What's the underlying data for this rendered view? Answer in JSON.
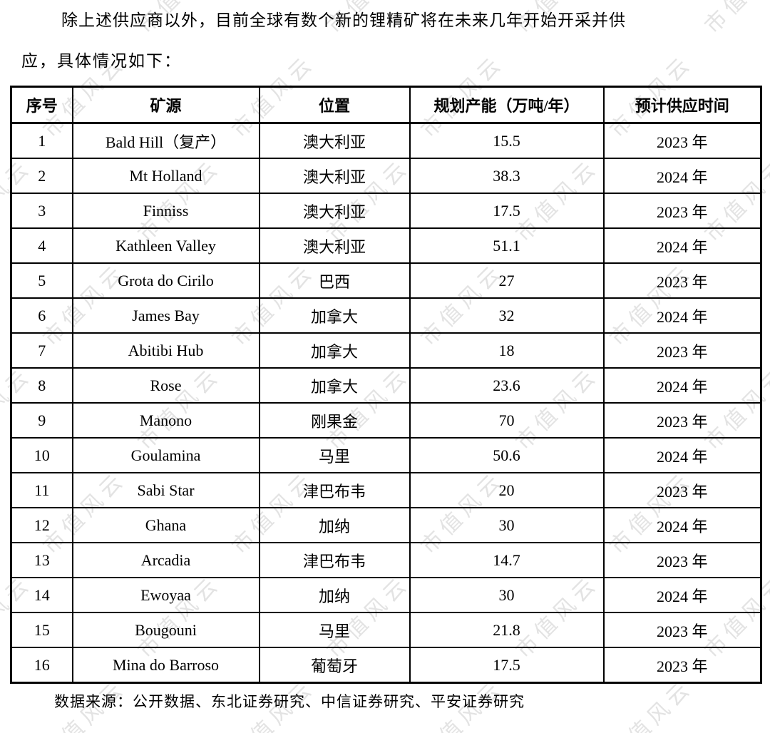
{
  "page": {
    "paragraph": {
      "line1": "除上述供应商以外，目前全球有数个新的锂精矿将在未来几年开始开采并供",
      "line2": "应，具体情况如下："
    },
    "source_note": "数据来源：公开数据、东北证券研究、中信证券研究、平安证券研究"
  },
  "watermark": {
    "text": "市值风云",
    "color": "#e3e3e3"
  },
  "table": {
    "columns": [
      "序号",
      "矿源",
      "位置",
      "规划产能（万吨/年）",
      "预计供应时间"
    ],
    "rows": [
      [
        "1",
        "Bald Hill（复产）",
        "澳大利亚",
        "15.5",
        "2023 年"
      ],
      [
        "2",
        "Mt Holland",
        "澳大利亚",
        "38.3",
        "2024 年"
      ],
      [
        "3",
        "Finniss",
        "澳大利亚",
        "17.5",
        "2023 年"
      ],
      [
        "4",
        "Kathleen Valley",
        "澳大利亚",
        "51.1",
        "2024 年"
      ],
      [
        "5",
        "Grota do Cirilo",
        "巴西",
        "27",
        "2023 年"
      ],
      [
        "6",
        "James Bay",
        "加拿大",
        "32",
        "2024 年"
      ],
      [
        "7",
        "Abitibi Hub",
        "加拿大",
        "18",
        "2023 年"
      ],
      [
        "8",
        "Rose",
        "加拿大",
        "23.6",
        "2024 年"
      ],
      [
        "9",
        "Manono",
        "刚果金",
        "70",
        "2023 年"
      ],
      [
        "10",
        "Goulamina",
        "马里",
        "50.6",
        "2024 年"
      ],
      [
        "11",
        "Sabi Star",
        "津巴布韦",
        "20",
        "2023 年"
      ],
      [
        "12",
        "Ghana",
        "加纳",
        "30",
        "2024 年"
      ],
      [
        "13",
        "Arcadia",
        "津巴布韦",
        "14.7",
        "2023 年"
      ],
      [
        "14",
        "Ewoyaa",
        "加纳",
        "30",
        "2024 年"
      ],
      [
        "15",
        "Bougouni",
        "马里",
        "21.8",
        "2023 年"
      ],
      [
        "16",
        "Mina do Barroso",
        "葡萄牙",
        "17.5",
        "2023 年"
      ]
    ]
  }
}
